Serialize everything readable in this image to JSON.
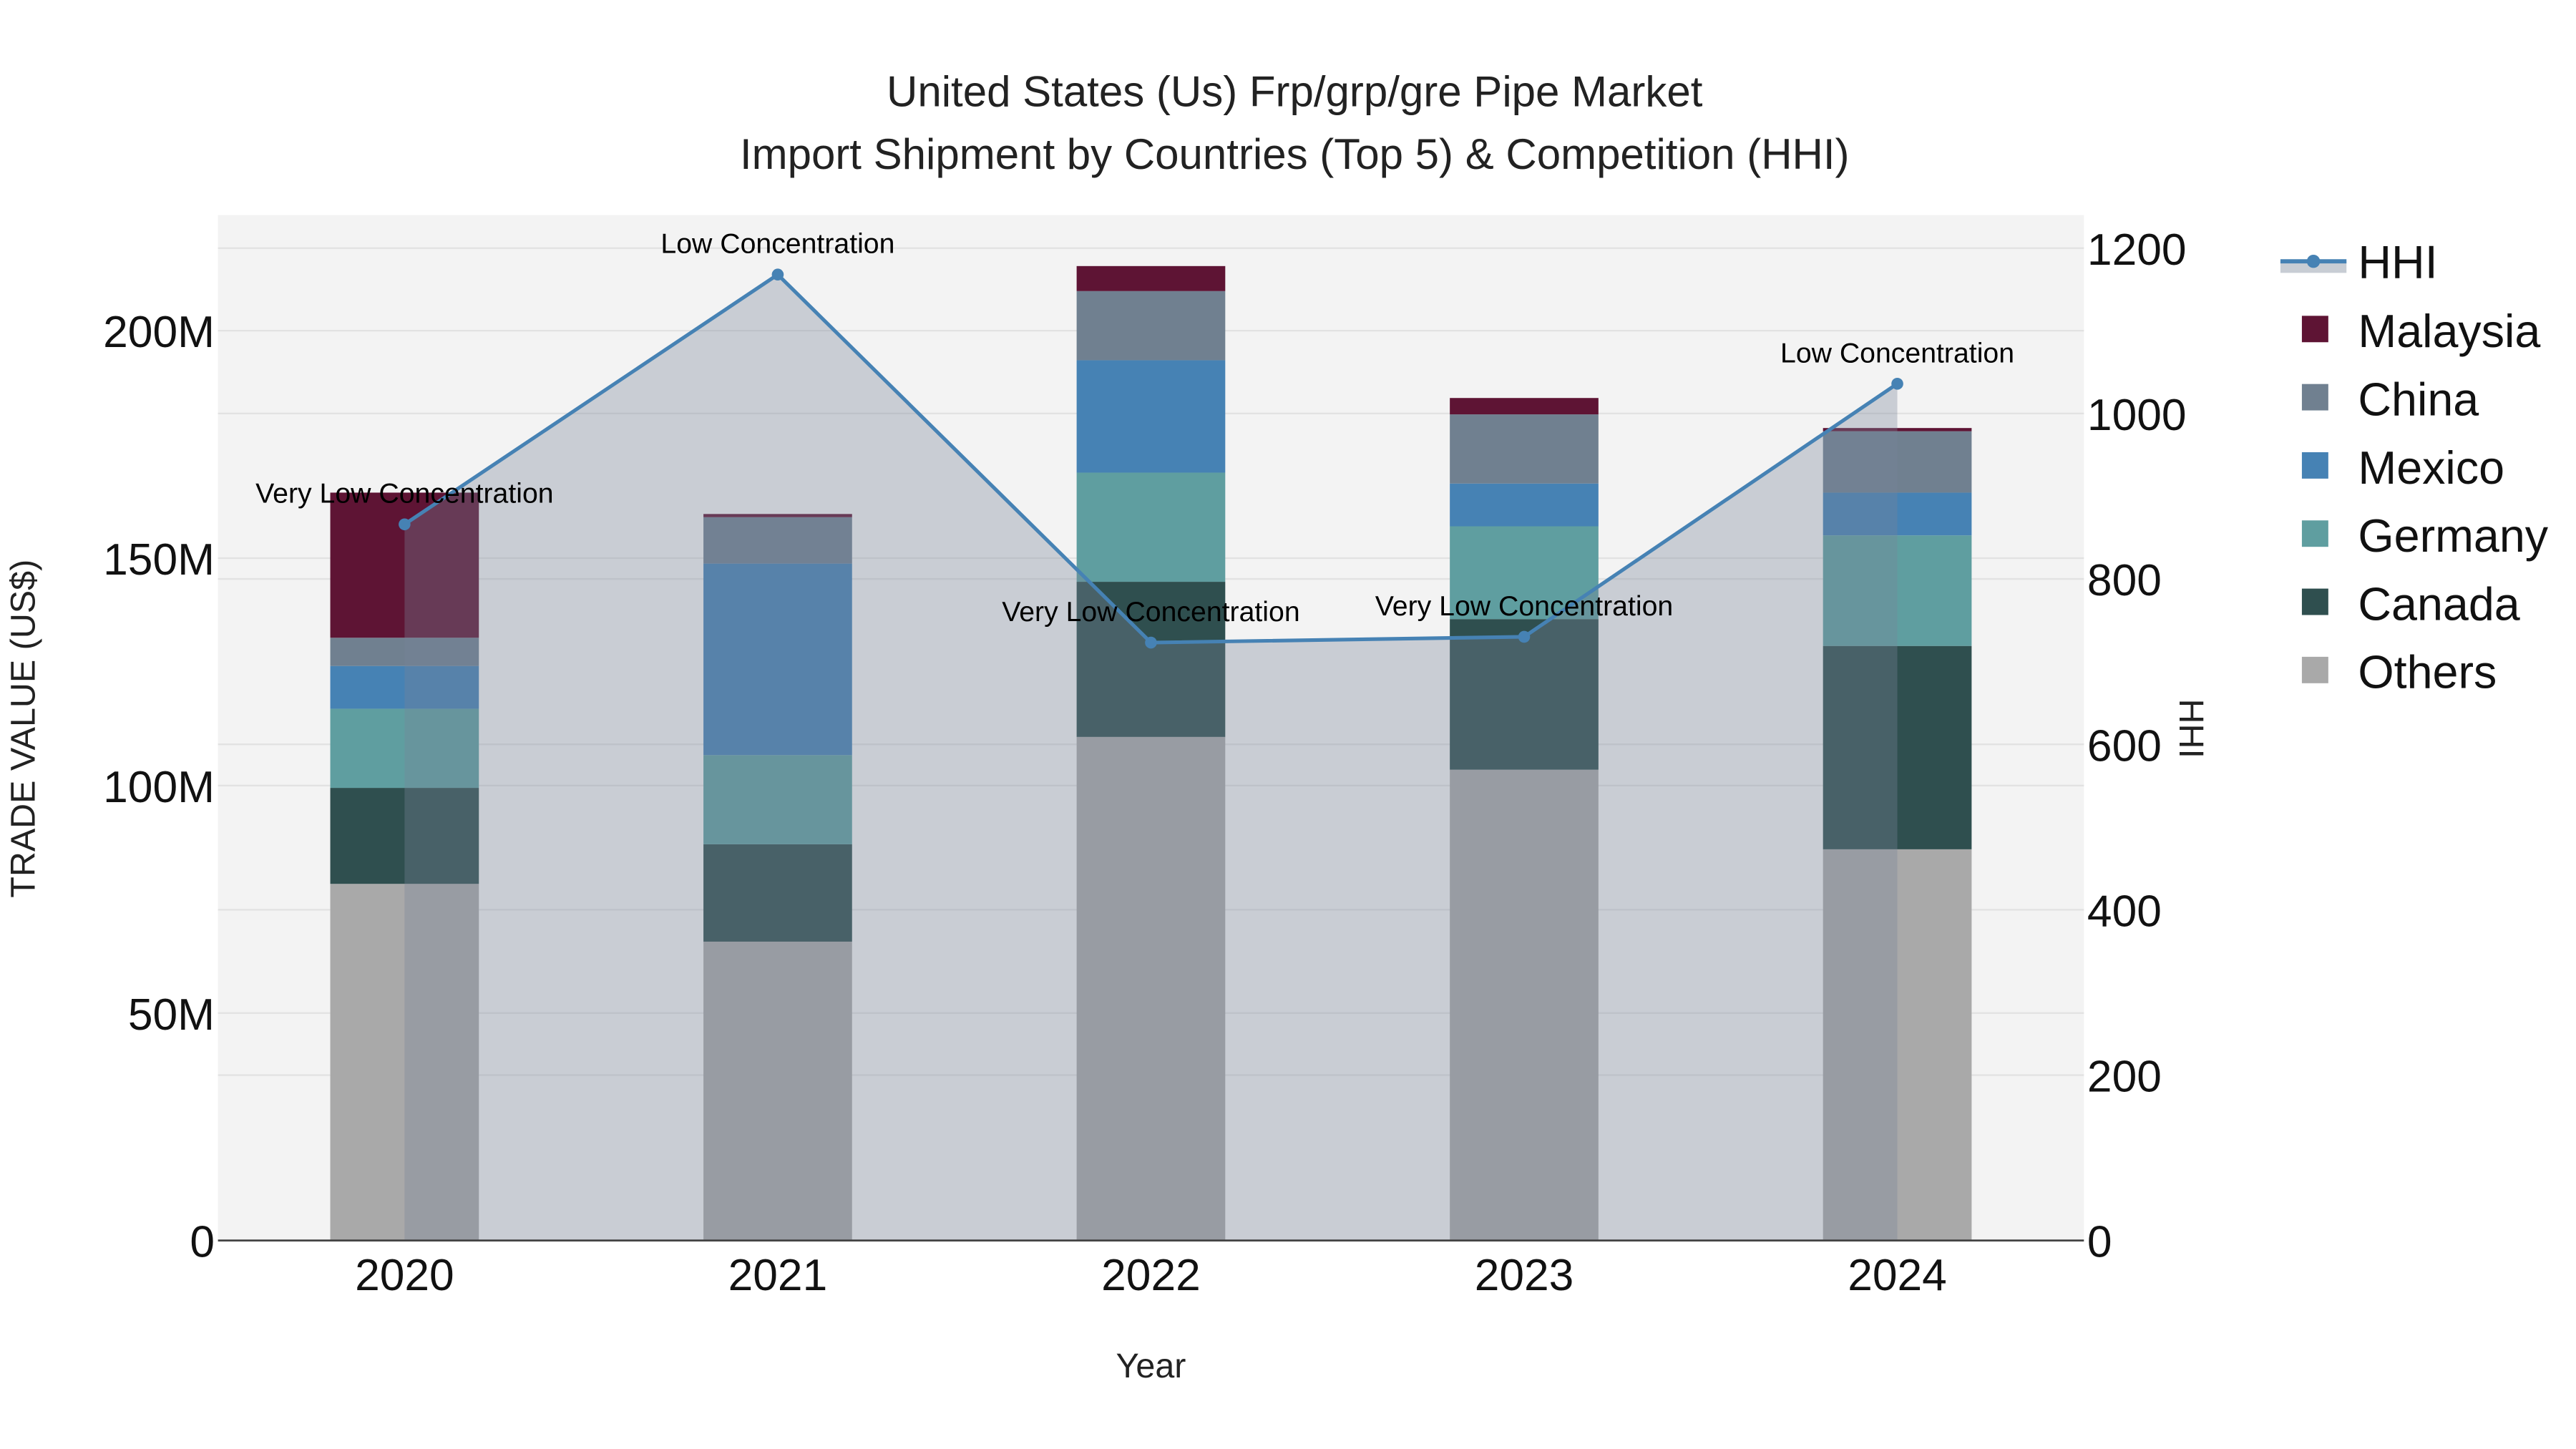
{
  "chart_data": {
    "type": "bar",
    "stacked": true,
    "title": "United States (Us) Frp/grp/gre Pipe Market",
    "subtitle": "Import Shipment by Countries (Top 5) & Competition (HHI)",
    "xlabel": "Year",
    "ylabel": "TRADE VALUE (US$)",
    "y2label": "HHI",
    "categories": [
      "2020",
      "2021",
      "2022",
      "2023",
      "2024"
    ],
    "ylim": [
      0,
      225
    ],
    "y_unit": "M",
    "yticks": [
      0,
      50,
      100,
      150,
      200
    ],
    "ytick_labels": [
      "0",
      "50M",
      "100M",
      "150M",
      "200M"
    ],
    "y2lim": [
      0,
      1240
    ],
    "y2ticks": [
      0,
      200,
      400,
      600,
      800,
      1000,
      1200
    ],
    "y2tick_labels": [
      "0",
      "200",
      "400",
      "600",
      "800",
      "1000",
      "1200"
    ],
    "grid": true,
    "legend_position": "right",
    "series": [
      {
        "name": "Others",
        "color": "#a9a9a9",
        "values": [
          78.4,
          65.7,
          110.7,
          103.5,
          86.0
        ]
      },
      {
        "name": "Canada",
        "color": "#2f4f4f",
        "values": [
          21.1,
          21.4,
          34.1,
          33.1,
          44.7
        ]
      },
      {
        "name": "Germany",
        "color": "#5f9ea0",
        "values": [
          17.4,
          19.6,
          24.0,
          20.4,
          24.3
        ]
      },
      {
        "name": "Mexico",
        "color": "#4682b4",
        "values": [
          9.4,
          42.1,
          24.7,
          9.4,
          9.4
        ]
      },
      {
        "name": "China",
        "color": "#708090",
        "values": [
          6.2,
          10.2,
          15.2,
          15.2,
          13.5
        ]
      },
      {
        "name": "Malaysia",
        "color": "#5e1434",
        "values": [
          31.9,
          0.7,
          5.5,
          3.6,
          0.7
        ]
      }
    ],
    "hhi": {
      "name": "HHI",
      "color": "#4682b4",
      "values": [
        866,
        1168,
        723,
        730,
        1036
      ],
      "annotations": [
        "Very Low Concentration",
        "Low Concentration",
        "Very Low Concentration",
        "Very Low Concentration",
        "Low Concentration"
      ]
    },
    "legend": [
      "HHI",
      "Malaysia",
      "China",
      "Mexico",
      "Germany",
      "Canada",
      "Others"
    ]
  }
}
